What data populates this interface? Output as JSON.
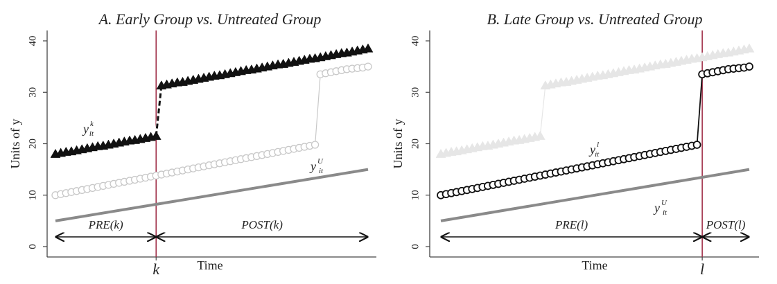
{
  "chart_data": [
    {
      "type": "line",
      "title": "A. Early Group vs. Untreated Group",
      "xlabel": "Time",
      "ylabel": "Units of y",
      "ylim": [
        0,
        40
      ],
      "yticks": [
        0,
        10,
        20,
        30,
        40
      ],
      "xlim": [
        1,
        60
      ],
      "event_time": 20,
      "event_label": "k",
      "series": [
        {
          "label_main": "y",
          "label_sup": "k",
          "label_sub": "it",
          "marker": "triangle",
          "color": "#111111",
          "line": "dashed",
          "faded": false,
          "x": [
            1,
            2,
            3,
            4,
            5,
            6,
            7,
            8,
            9,
            10,
            11,
            12,
            13,
            14,
            15,
            16,
            17,
            18,
            19,
            20,
            21,
            22,
            23,
            24,
            25,
            26,
            27,
            28,
            29,
            30,
            31,
            32,
            33,
            34,
            35,
            36,
            37,
            38,
            39,
            40,
            41,
            42,
            43,
            44,
            45,
            46,
            47,
            48,
            49,
            50,
            51,
            52,
            53,
            54,
            55,
            56,
            57,
            58,
            59,
            60
          ],
          "y": [
            18.0,
            18.2,
            18.4,
            18.5,
            18.7,
            18.9,
            19.1,
            19.3,
            19.5,
            19.6,
            19.8,
            20.0,
            20.2,
            20.4,
            20.6,
            20.7,
            20.9,
            21.1,
            21.3,
            21.5,
            31.3,
            31.5,
            31.7,
            31.9,
            32.0,
            32.2,
            32.4,
            32.6,
            32.8,
            33.0,
            33.2,
            33.3,
            33.5,
            33.7,
            33.9,
            34.1,
            34.3,
            34.4,
            34.6,
            34.8,
            35.0,
            35.2,
            35.4,
            35.5,
            35.7,
            35.9,
            36.1,
            36.3,
            36.5,
            36.6,
            36.8,
            37.0,
            37.2,
            37.4,
            37.6,
            37.7,
            37.9,
            38.1,
            38.3,
            38.5
          ]
        },
        {
          "label_main": "y",
          "label_sup": "U",
          "label_sub": "it",
          "marker": "circle",
          "color": "#c8c8c8",
          "line": "solid",
          "faded": true,
          "x": [
            1,
            2,
            3,
            4,
            5,
            6,
            7,
            8,
            9,
            10,
            11,
            12,
            13,
            14,
            15,
            16,
            17,
            18,
            19,
            20,
            21,
            22,
            23,
            24,
            25,
            26,
            27,
            28,
            29,
            30,
            31,
            32,
            33,
            34,
            35,
            36,
            37,
            38,
            39,
            40,
            41,
            42,
            43,
            44,
            45,
            46,
            47,
            48,
            49,
            50,
            51,
            52,
            53,
            54,
            55,
            56,
            57,
            58,
            59,
            60
          ],
          "y": [
            10.0,
            10.2,
            10.4,
            10.6,
            10.8,
            11.0,
            11.2,
            11.4,
            11.6,
            11.8,
            12.0,
            12.2,
            12.4,
            12.6,
            12.8,
            13.0,
            13.2,
            13.4,
            13.6,
            13.8,
            14.0,
            14.2,
            14.4,
            14.6,
            14.8,
            15.0,
            15.2,
            15.4,
            15.6,
            15.8,
            16.0,
            16.2,
            16.4,
            16.6,
            16.8,
            17.0,
            17.2,
            17.4,
            17.6,
            17.8,
            18.0,
            18.2,
            18.4,
            18.6,
            18.8,
            19.0,
            19.2,
            19.4,
            19.6,
            19.8,
            33.5,
            33.7,
            33.9,
            34.1,
            34.3,
            34.5,
            34.6,
            34.7,
            34.8,
            35.0
          ]
        },
        {
          "label_main": "",
          "label_sup": "",
          "label_sub": "",
          "marker": "none",
          "color": "#8a8a8a",
          "line": "solid",
          "faded": false,
          "x": [
            1,
            60
          ],
          "y": [
            5.0,
            15.0
          ]
        }
      ],
      "regions": [
        {
          "label": "PRE(k)",
          "x0": 1,
          "x1": 20
        },
        {
          "label": "POST(k)",
          "x0": 20,
          "x1": 60
        }
      ]
    },
    {
      "type": "line",
      "title": "B. Late Group vs. Untreated Group",
      "xlabel": "Time",
      "ylabel": "Units of y",
      "ylim": [
        0,
        40
      ],
      "yticks": [
        0,
        10,
        20,
        30,
        40
      ],
      "xlim": [
        1,
        60
      ],
      "event_time": 51,
      "event_label": "l",
      "series": [
        {
          "label_main": "",
          "label_sup": "",
          "label_sub": "",
          "marker": "triangle",
          "color": "#e6e6e6",
          "line": "solid",
          "faded": true,
          "x": [
            1,
            2,
            3,
            4,
            5,
            6,
            7,
            8,
            9,
            10,
            11,
            12,
            13,
            14,
            15,
            16,
            17,
            18,
            19,
            20,
            21,
            22,
            23,
            24,
            25,
            26,
            27,
            28,
            29,
            30,
            31,
            32,
            33,
            34,
            35,
            36,
            37,
            38,
            39,
            40,
            41,
            42,
            43,
            44,
            45,
            46,
            47,
            48,
            49,
            50,
            51,
            52,
            53,
            54,
            55,
            56,
            57,
            58,
            59,
            60
          ],
          "y": [
            18.0,
            18.2,
            18.4,
            18.5,
            18.7,
            18.9,
            19.1,
            19.3,
            19.5,
            19.6,
            19.8,
            20.0,
            20.2,
            20.4,
            20.6,
            20.7,
            20.9,
            21.1,
            21.3,
            21.5,
            31.3,
            31.5,
            31.7,
            31.9,
            32.0,
            32.2,
            32.4,
            32.6,
            32.8,
            33.0,
            33.2,
            33.3,
            33.5,
            33.7,
            33.9,
            34.1,
            34.3,
            34.4,
            34.6,
            34.8,
            35.0,
            35.2,
            35.4,
            35.5,
            35.7,
            35.9,
            36.1,
            36.3,
            36.5,
            36.6,
            36.8,
            37.0,
            37.2,
            37.4,
            37.6,
            37.7,
            37.9,
            38.1,
            38.3,
            38.5
          ]
        },
        {
          "label_main": "y",
          "label_sup": "l",
          "label_sub": "it",
          "marker": "circle",
          "color": "#111111",
          "line": "solid",
          "faded": false,
          "x": [
            1,
            2,
            3,
            4,
            5,
            6,
            7,
            8,
            9,
            10,
            11,
            12,
            13,
            14,
            15,
            16,
            17,
            18,
            19,
            20,
            21,
            22,
            23,
            24,
            25,
            26,
            27,
            28,
            29,
            30,
            31,
            32,
            33,
            34,
            35,
            36,
            37,
            38,
            39,
            40,
            41,
            42,
            43,
            44,
            45,
            46,
            47,
            48,
            49,
            50,
            51,
            52,
            53,
            54,
            55,
            56,
            57,
            58,
            59,
            60
          ],
          "y": [
            10.0,
            10.2,
            10.4,
            10.6,
            10.8,
            11.0,
            11.2,
            11.4,
            11.6,
            11.8,
            12.0,
            12.2,
            12.4,
            12.6,
            12.8,
            13.0,
            13.2,
            13.4,
            13.6,
            13.8,
            14.0,
            14.2,
            14.4,
            14.6,
            14.8,
            15.0,
            15.2,
            15.4,
            15.6,
            15.8,
            16.0,
            16.2,
            16.4,
            16.6,
            16.8,
            17.0,
            17.2,
            17.4,
            17.6,
            17.8,
            18.0,
            18.2,
            18.4,
            18.6,
            18.8,
            19.0,
            19.2,
            19.4,
            19.6,
            19.8,
            33.5,
            33.7,
            33.9,
            34.1,
            34.3,
            34.5,
            34.6,
            34.7,
            34.8,
            35.0
          ]
        },
        {
          "label_main": "y",
          "label_sup": "U",
          "label_sub": "it",
          "marker": "none",
          "color": "#8a8a8a",
          "line": "solid",
          "faded": false,
          "x": [
            1,
            60
          ],
          "y": [
            5.0,
            15.0
          ]
        }
      ],
      "regions": [
        {
          "label": "PRE(l)",
          "x0": 1,
          "x1": 51
        },
        {
          "label": "POST(l)",
          "x0": 51,
          "x1": 60
        }
      ]
    }
  ],
  "colors": {
    "event_line": "#a0304a",
    "axis": "#444444",
    "text": "#222222"
  }
}
